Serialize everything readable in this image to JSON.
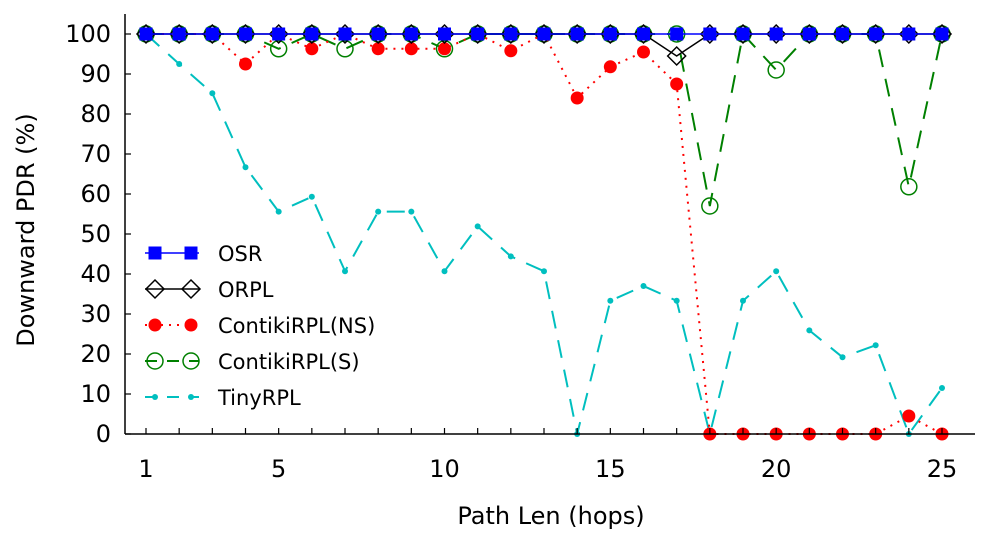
{
  "chart_data": {
    "type": "line",
    "title": "",
    "xlabel": "Path Len (hops)",
    "ylabel": "Downward PDR (%)",
    "xlim": [
      0.5,
      26
    ],
    "ylim": [
      0,
      100
    ],
    "xticks": [
      1,
      5,
      10,
      15,
      20,
      25
    ],
    "yticks": [
      0,
      10,
      20,
      30,
      40,
      50,
      60,
      70,
      80,
      90,
      100
    ],
    "x": [
      1,
      2,
      3,
      4,
      5,
      6,
      7,
      8,
      9,
      10,
      11,
      12,
      13,
      14,
      15,
      16,
      17,
      18,
      19,
      20,
      21,
      22,
      23,
      24,
      25
    ],
    "legend_position": "center-left",
    "series": [
      {
        "name": "OSR",
        "color": "#0000ff",
        "marker": "filled-square",
        "line": "solid",
        "values": [
          100,
          100,
          100,
          100,
          100,
          100,
          100,
          100,
          100,
          100,
          100,
          100,
          100,
          100,
          100,
          100,
          100,
          100,
          100,
          100,
          100,
          100,
          100,
          100,
          100
        ]
      },
      {
        "name": "ORPL",
        "color": "#000000",
        "marker": "open-diamond",
        "line": "solid",
        "values": [
          100,
          100,
          100,
          100,
          100,
          100,
          100,
          100,
          100,
          100,
          100,
          100,
          100,
          100,
          100,
          100,
          94.5,
          100,
          100,
          100,
          100,
          100,
          100,
          100,
          100
        ]
      },
      {
        "name": "ContikiRPL(NS)",
        "color": "#ff0000",
        "marker": "filled-circle",
        "line": "dotted",
        "values": [
          100,
          100,
          100,
          92.5,
          100,
          96.3,
          100,
          96.3,
          96.3,
          96.3,
          100,
          95.8,
          100,
          84,
          91.8,
          95.5,
          87.5,
          0,
          0,
          0,
          0,
          0,
          0,
          4.5,
          0
        ]
      },
      {
        "name": "ContikiRPL(S)",
        "color": "#008000",
        "marker": "open-circle",
        "line": "dashed",
        "values": [
          100,
          100,
          100,
          100,
          96.3,
          100,
          96.3,
          100,
          100,
          96.3,
          100,
          100,
          100,
          100,
          100,
          100,
          100,
          57,
          100,
          91,
          100,
          100,
          100,
          61.8,
          100
        ]
      },
      {
        "name": "TinyRPL",
        "color": "#00bfbf",
        "marker": "small-dot",
        "line": "dashed",
        "values": [
          100,
          92.5,
          85.2,
          66.7,
          55.6,
          59.3,
          40.7,
          55.6,
          55.6,
          40.7,
          51.9,
          44.4,
          40.7,
          0,
          33.3,
          37,
          33.3,
          0,
          33.3,
          40.7,
          25.9,
          19.2,
          22.2,
          0,
          11.5
        ]
      }
    ]
  }
}
